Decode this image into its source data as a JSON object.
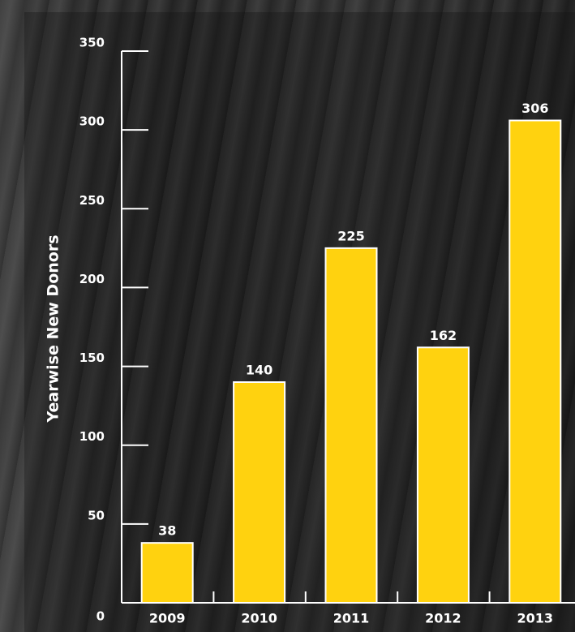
{
  "chart_data": {
    "type": "bar",
    "y_axis_label": "Yearwise New Donors",
    "categories": [
      "2009",
      "2010",
      "2011",
      "2012",
      "2013"
    ],
    "values": [
      38,
      140,
      225,
      162,
      306
    ],
    "color": "#ffd20f",
    "ylim": [
      0,
      350
    ],
    "yticks": [
      0,
      50,
      100,
      150,
      200,
      250,
      300,
      350
    ]
  }
}
